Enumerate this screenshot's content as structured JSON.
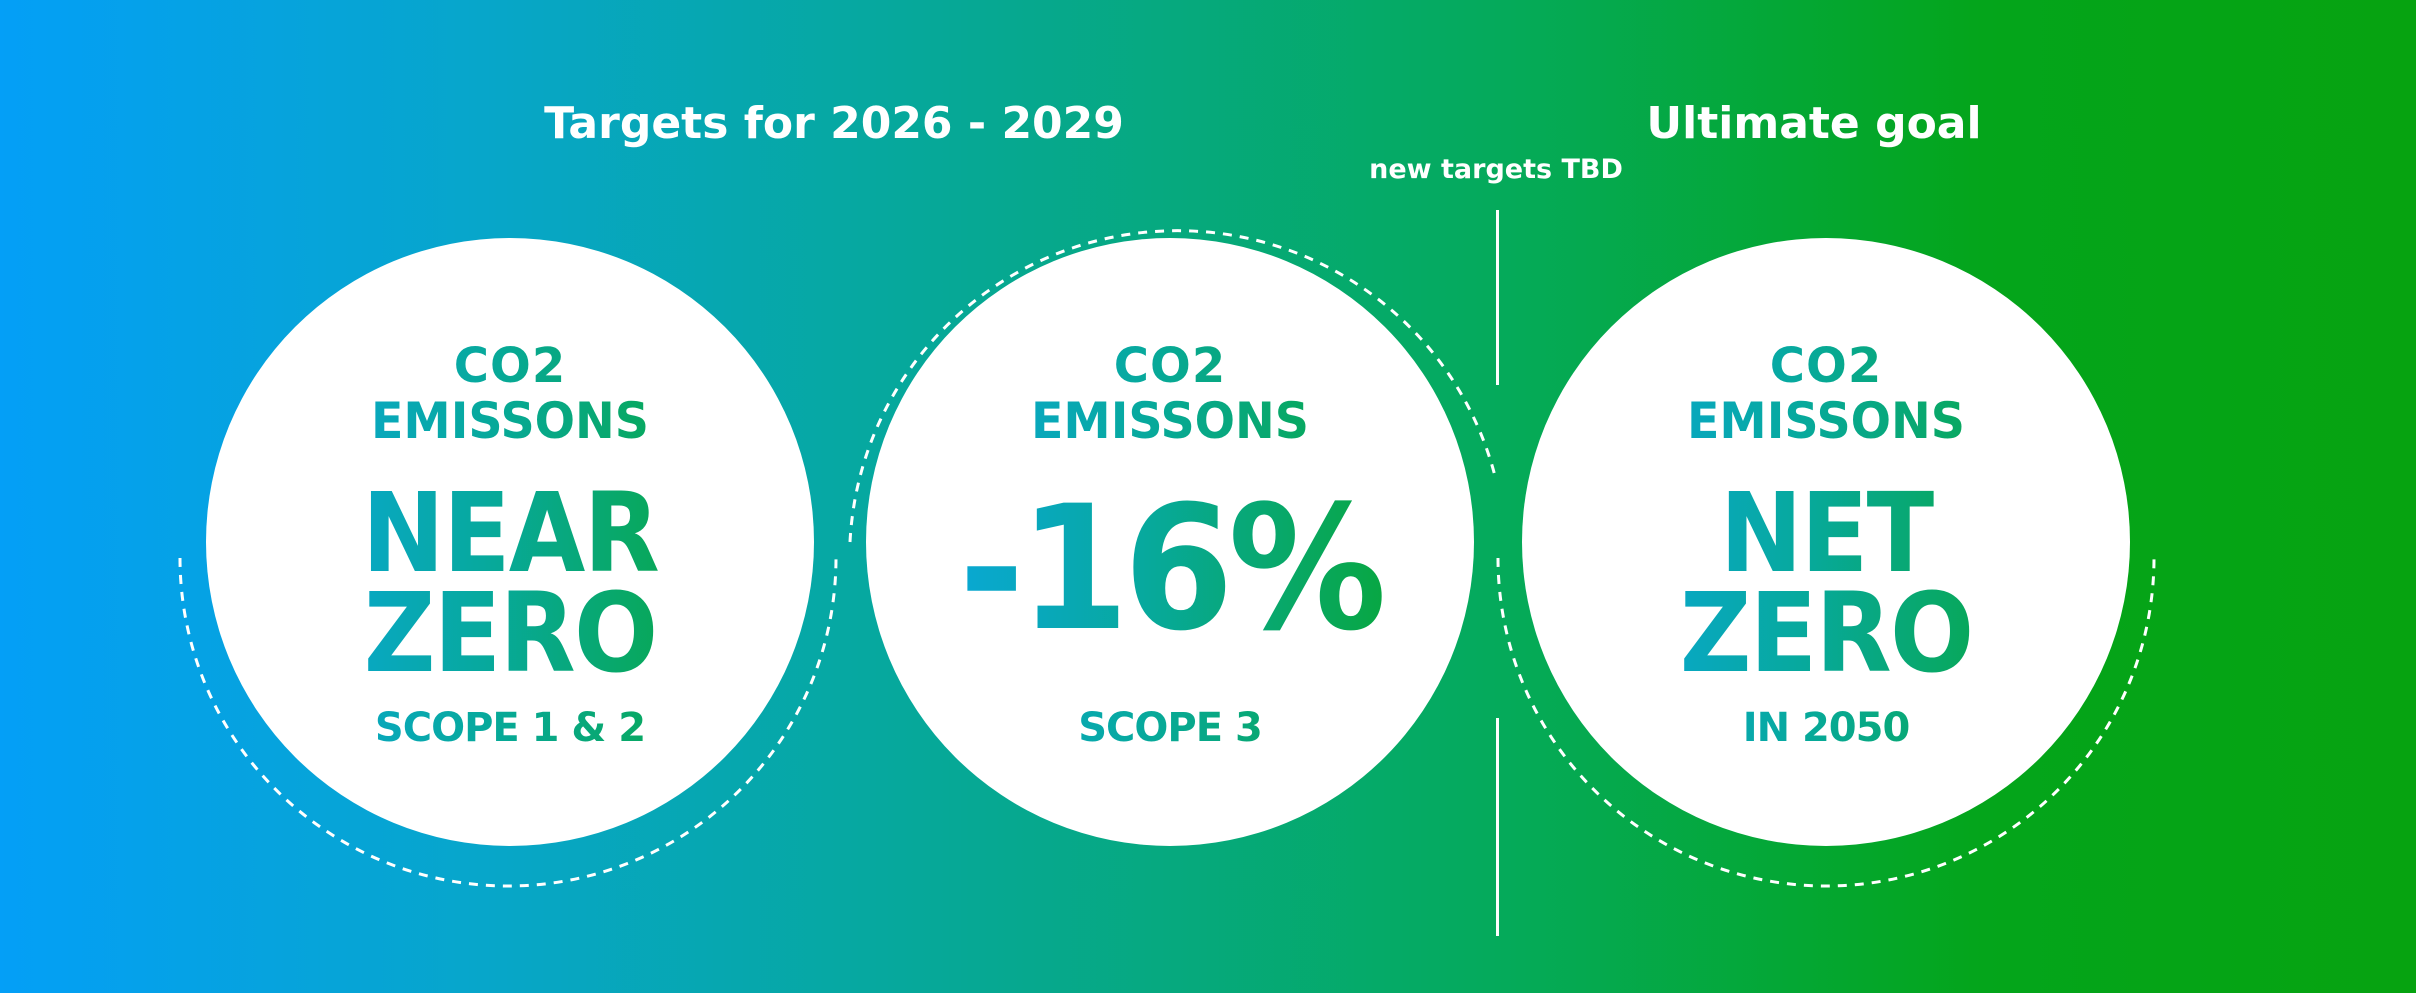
{
  "headings": {
    "targets": "Targets for 2026 - 2029",
    "ultimate": "Ultimate goal",
    "tbd_note": "new targets TBD"
  },
  "circles": [
    {
      "line1": "CO2",
      "line2": "EMISSONS",
      "big_line1": "NEAR",
      "big_line2": "ZERO",
      "footer": "SCOPE 1 & 2"
    },
    {
      "line1": "CO2",
      "line2": "EMISSONS",
      "value": "-16%",
      "footer": "SCOPE 3"
    },
    {
      "line1": "CO2",
      "line2": "EMISSONS",
      "big_line1": "NET",
      "big_line2": "ZERO",
      "footer": "IN 2050"
    }
  ],
  "colors": {
    "background_left": "#049ff7",
    "background_right": "#06a310",
    "text_gradient_start": "#0aa7e6",
    "text_gradient_end": "#09a62a",
    "circle": "#ffffff"
  }
}
